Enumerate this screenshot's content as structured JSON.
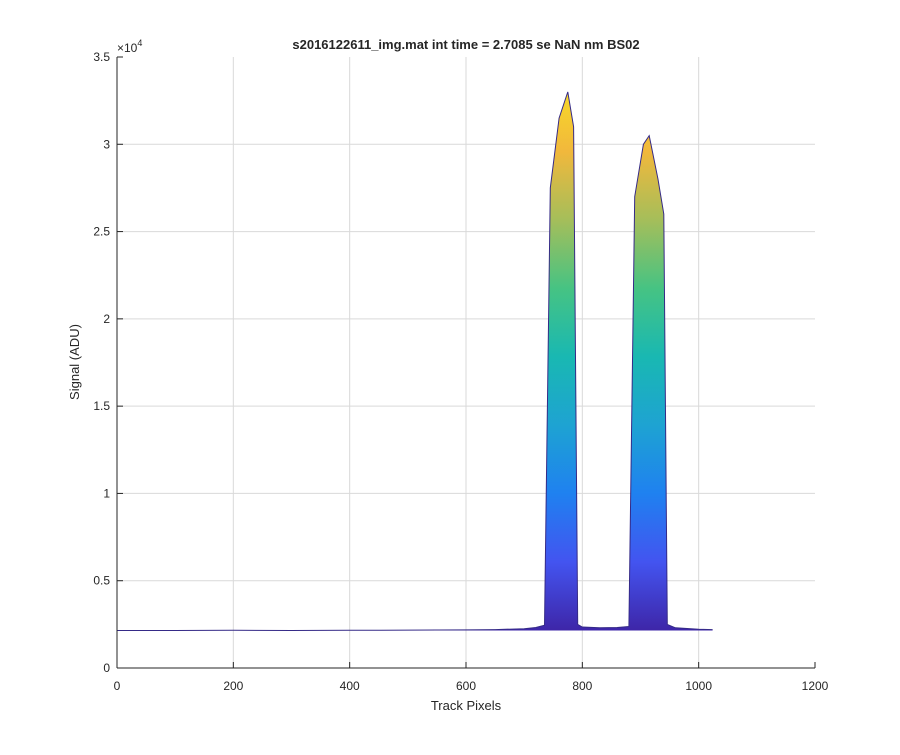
{
  "chart_data": {
    "type": "area",
    "title": "s2016122611_img.mat int time = 2.7085 se  NaN nm BS02",
    "xlabel": "Track Pixels",
    "ylabel": "Signal (ADU)",
    "y_exponent_label": "×10",
    "y_exponent_power": "4",
    "xlim": [
      0,
      1200
    ],
    "ylim": [
      0,
      35000
    ],
    "grid": true,
    "x_ticks": [
      0,
      200,
      400,
      600,
      800,
      1000,
      1200
    ],
    "x_tick_labels": [
      "0",
      "200",
      "400",
      "600",
      "800",
      "1000",
      "1200"
    ],
    "y_ticks": [
      0,
      5000,
      10000,
      15000,
      20000,
      25000,
      30000,
      35000
    ],
    "y_tick_labels": [
      "0",
      "0.5",
      "1",
      "1.5",
      "2",
      "2.5",
      "3",
      "3.5"
    ],
    "baseline_signal": 2150,
    "data_x_max": 1024,
    "colormap": [
      "#3e26a8",
      "#4354f0",
      "#1f81f0",
      "#1ea3d2",
      "#19b8b2",
      "#46c383",
      "#a5be5a",
      "#f1b83c",
      "#f9dd25"
    ],
    "line_color": "#352a87",
    "series": [
      {
        "x": [
          0,
          100,
          200,
          300,
          400,
          500,
          600,
          650,
          700,
          720,
          735,
          745,
          760,
          775,
          785,
          792,
          800,
          830,
          860,
          880,
          890,
          905,
          915,
          930,
          940,
          946,
          960,
          1000,
          1024
        ],
        "y": [
          2150,
          2150,
          2160,
          2150,
          2160,
          2170,
          2180,
          2200,
          2250,
          2320,
          2450,
          27500,
          31500,
          33000,
          31000,
          2500,
          2350,
          2300,
          2320,
          2380,
          27000,
          30000,
          30500,
          28000,
          26000,
          2500,
          2300,
          2220,
          2200
        ]
      }
    ]
  }
}
